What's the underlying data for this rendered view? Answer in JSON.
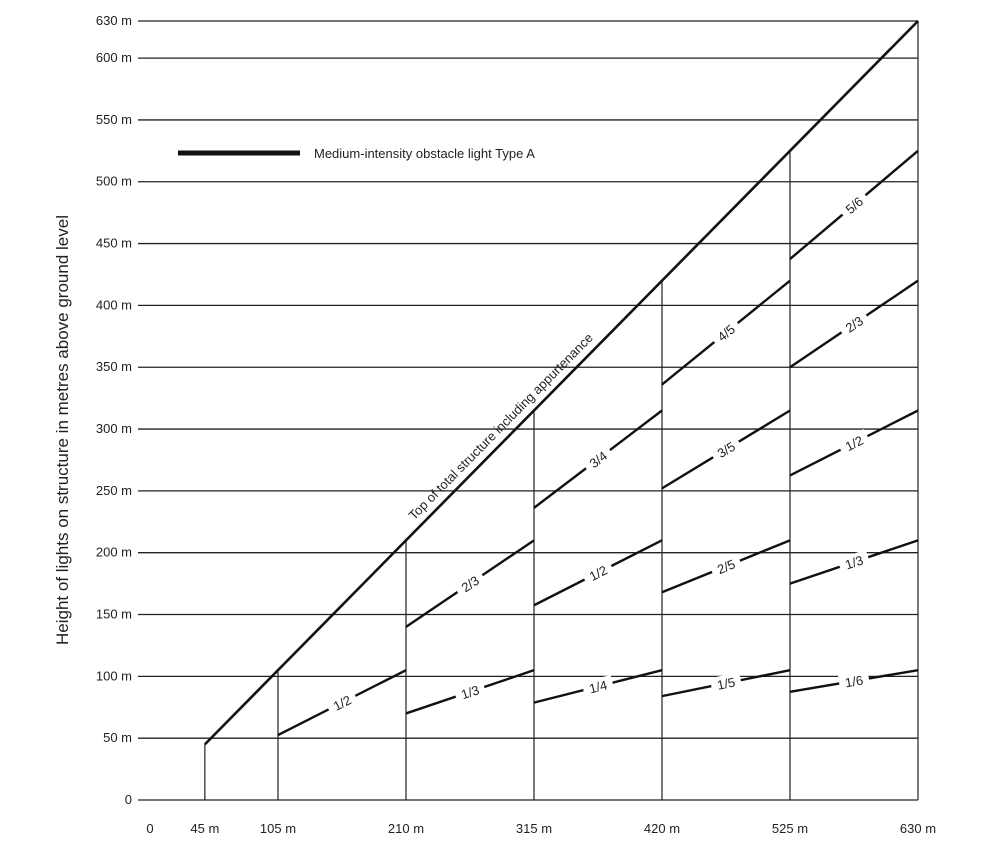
{
  "chart_data": {
    "type": "line",
    "title": "",
    "ylabel": "Height of lights on structure in metres above ground level",
    "xlabel": "",
    "xlim": [
      0,
      630
    ],
    "ylim": [
      0,
      630
    ],
    "x_ticks": [
      {
        "value": 0,
        "label": "0"
      },
      {
        "value": 45,
        "label": "45 m"
      },
      {
        "value": 105,
        "label": "105 m"
      },
      {
        "value": 210,
        "label": "210 m"
      },
      {
        "value": 315,
        "label": "315 m"
      },
      {
        "value": 420,
        "label": "420 m"
      },
      {
        "value": 525,
        "label": "525 m"
      },
      {
        "value": 630,
        "label": "630 m"
      }
    ],
    "y_ticks": [
      {
        "value": 0,
        "label": "0"
      },
      {
        "value": 50,
        "label": "50 m"
      },
      {
        "value": 100,
        "label": "100 m"
      },
      {
        "value": 150,
        "label": "150 m"
      },
      {
        "value": 200,
        "label": "200 m"
      },
      {
        "value": 250,
        "label": "250 m"
      },
      {
        "value": 300,
        "label": "300 m"
      },
      {
        "value": 350,
        "label": "350 m"
      },
      {
        "value": 400,
        "label": "400 m"
      },
      {
        "value": 450,
        "label": "450 m"
      },
      {
        "value": 500,
        "label": "500 m"
      },
      {
        "value": 550,
        "label": "550 m"
      },
      {
        "value": 600,
        "label": "600 m"
      },
      {
        "value": 630,
        "label": "630 m"
      }
    ],
    "grid": true,
    "legend": {
      "position": "top-left",
      "label": "Medium-intensity obstacle light Type A"
    },
    "diagonal": {
      "label": "Top of total structure including appurtenance",
      "x": [
        45,
        630
      ],
      "y": [
        45,
        630
      ]
    },
    "interval_boundaries": [
      45,
      105,
      210,
      315,
      420,
      525,
      630
    ],
    "series": [
      {
        "label": "1/2",
        "x": [
          105,
          210
        ],
        "y": [
          52.5,
          105
        ]
      },
      {
        "label": "1/3",
        "x": [
          210,
          315
        ],
        "y": [
          70,
          105
        ]
      },
      {
        "label": "2/3",
        "x": [
          210,
          315
        ],
        "y": [
          140,
          210
        ]
      },
      {
        "label": "1/4",
        "x": [
          315,
          420
        ],
        "y": [
          78.75,
          105
        ]
      },
      {
        "label": "1/2",
        "x": [
          315,
          420
        ],
        "y": [
          157.5,
          210
        ]
      },
      {
        "label": "3/4",
        "x": [
          315,
          420
        ],
        "y": [
          236.25,
          315
        ]
      },
      {
        "label": "1/5",
        "x": [
          420,
          525
        ],
        "y": [
          84,
          105
        ]
      },
      {
        "label": "2/5",
        "x": [
          420,
          525
        ],
        "y": [
          168,
          210
        ]
      },
      {
        "label": "3/5",
        "x": [
          420,
          525
        ],
        "y": [
          252,
          315
        ]
      },
      {
        "label": "4/5",
        "x": [
          420,
          525
        ],
        "y": [
          336,
          420
        ]
      },
      {
        "label": "1/6",
        "x": [
          525,
          630
        ],
        "y": [
          87.5,
          105
        ]
      },
      {
        "label": "1/3",
        "x": [
          525,
          630
        ],
        "y": [
          175,
          210
        ]
      },
      {
        "label": "1/2",
        "x": [
          525,
          630
        ],
        "y": [
          262.5,
          315
        ]
      },
      {
        "label": "2/3",
        "x": [
          525,
          630
        ],
        "y": [
          350,
          420
        ]
      },
      {
        "label": "5/6",
        "x": [
          525,
          630
        ],
        "y": [
          437.5,
          525
        ]
      }
    ]
  }
}
